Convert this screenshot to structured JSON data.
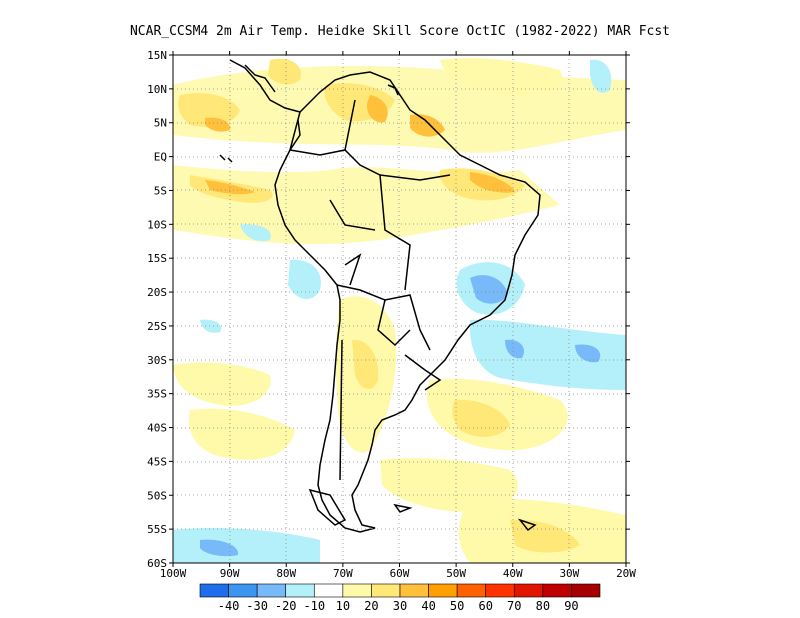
{
  "title": "NCAR_CCSM4  2m Air Temp. Heidke Skill Score OctIC (1982-2022) MAR Fcst",
  "map": {
    "region": "South America",
    "lon_range": [
      -100,
      -20
    ],
    "lat_range": [
      -60,
      15
    ],
    "grid": "dotted",
    "background": "#ffffff",
    "coastline_color": "#000000"
  },
  "axes": {
    "lat_ticks": [
      "15N",
      "10N",
      "5N",
      "EQ",
      "5S",
      "10S",
      "15S",
      "20S",
      "25S",
      "30S",
      "35S",
      "40S",
      "45S",
      "50S",
      "55S",
      "60S"
    ],
    "lon_ticks": [
      "100W",
      "90W",
      "80W",
      "70W",
      "60W",
      "50W",
      "40W",
      "30W",
      "20W"
    ]
  },
  "colorbar": {
    "labels": [
      "-40",
      "-30",
      "-20",
      "-10",
      "10",
      "20",
      "30",
      "40",
      "50",
      "60",
      "70",
      "80",
      "90"
    ],
    "colors": [
      "#1e6eeb",
      "#3c96f0",
      "#78b9fa",
      "#b4f0fa",
      "#ffffff",
      "#fffaaa",
      "#ffe878",
      "#ffc03c",
      "#ffa000",
      "#ff6000",
      "#ff3200",
      "#e11400",
      "#c00000",
      "#a50000"
    ]
  }
}
